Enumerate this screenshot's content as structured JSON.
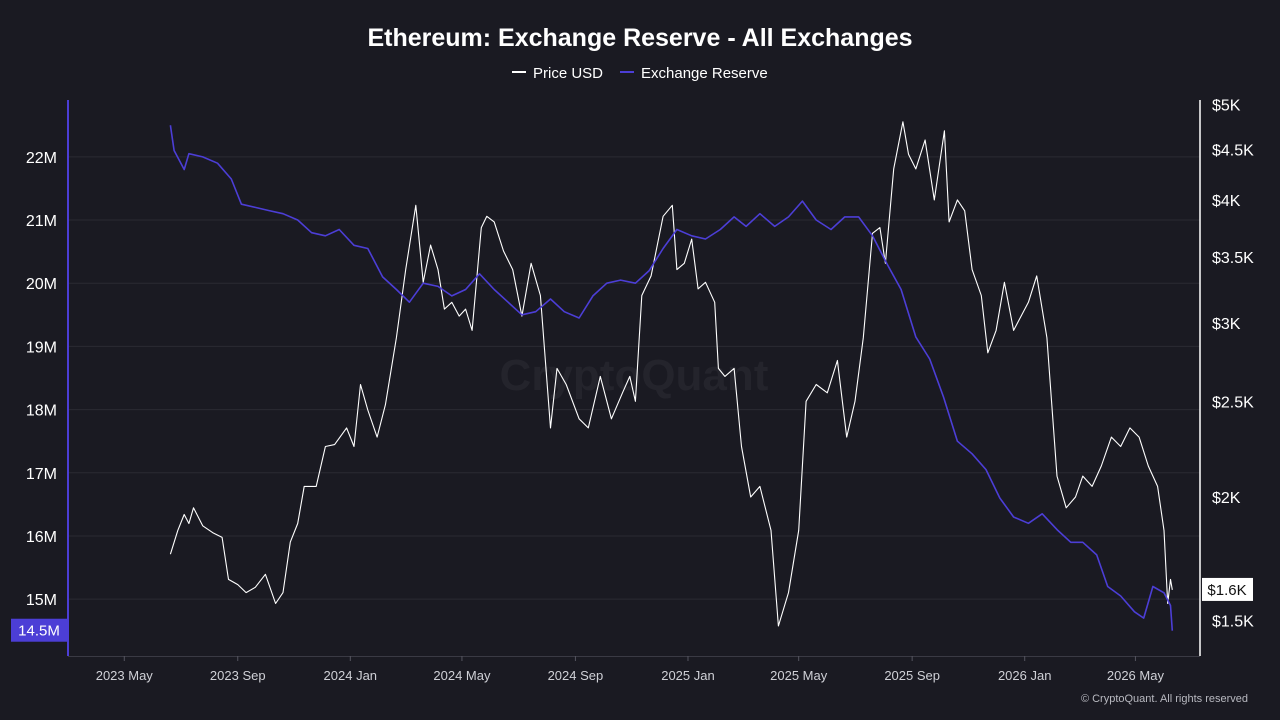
{
  "chart_data": {
    "type": "line",
    "title": "Ethereum: Exchange Reserve - All Exchanges",
    "legend": {
      "placement": "top-center",
      "entries": [
        "Price USD",
        "Exchange Reserve"
      ]
    },
    "grid": true,
    "colors": {
      "background": "#1a1a22",
      "price": "#ffffff",
      "reserve": "#4c3ed6",
      "grid": "#2a2a33",
      "badge_left": "#4c3ed6",
      "badge_right": "#ffffff"
    },
    "x_axis": {
      "ticks": [
        "2023 May",
        "2023 Sep",
        "2024 Jan",
        "2024 May",
        "2024 Sep",
        "2025 Jan",
        "2025 May",
        "2025 Sep",
        "2026 Jan",
        "2026 May"
      ],
      "range": [
        "2023-03-01",
        "2026-07-10"
      ]
    },
    "y_left": {
      "label": "Exchange Reserve",
      "range": [
        14.1,
        22.9
      ],
      "ticks": [
        "22M",
        "21M",
        "20M",
        "19M",
        "18M",
        "17M",
        "16M",
        "15M"
      ],
      "tick_values": [
        22,
        21,
        20,
        19,
        18,
        17,
        16,
        15
      ],
      "current": "14.5M"
    },
    "y_right": {
      "label": "Price USD",
      "scale": "log",
      "range": [
        1380,
        5050
      ],
      "ticks": [
        "$5K",
        "$4.5K",
        "$4K",
        "$3.5K",
        "$3K",
        "$2.5K",
        "$2K",
        "$1.5K"
      ],
      "tick_values": [
        5000,
        4500,
        4000,
        3500,
        3000,
        2500,
        2000,
        1500
      ],
      "current": "$1.6K"
    },
    "series": [
      {
        "name": "Price USD",
        "axis": "right",
        "points": [
          [
            "2023-06-20",
            1750
          ],
          [
            "2023-06-28",
            1850
          ],
          [
            "2023-07-05",
            1920
          ],
          [
            "2023-07-10",
            1880
          ],
          [
            "2023-07-15",
            1950
          ],
          [
            "2023-07-25",
            1870
          ],
          [
            "2023-08-05",
            1840
          ],
          [
            "2023-08-15",
            1820
          ],
          [
            "2023-08-22",
            1650
          ],
          [
            "2023-09-01",
            1630
          ],
          [
            "2023-09-10",
            1600
          ],
          [
            "2023-09-20",
            1620
          ],
          [
            "2023-10-01",
            1670
          ],
          [
            "2023-10-12",
            1560
          ],
          [
            "2023-10-20",
            1600
          ],
          [
            "2023-10-28",
            1800
          ],
          [
            "2023-11-05",
            1880
          ],
          [
            "2023-11-12",
            2050
          ],
          [
            "2023-11-25",
            2050
          ],
          [
            "2023-12-05",
            2250
          ],
          [
            "2023-12-15",
            2260
          ],
          [
            "2023-12-28",
            2350
          ],
          [
            "2024-01-05",
            2250
          ],
          [
            "2024-01-12",
            2600
          ],
          [
            "2024-01-20",
            2450
          ],
          [
            "2024-01-30",
            2300
          ],
          [
            "2024-02-08",
            2480
          ],
          [
            "2024-02-20",
            2900
          ],
          [
            "2024-03-01",
            3400
          ],
          [
            "2024-03-12",
            3950
          ],
          [
            "2024-03-20",
            3300
          ],
          [
            "2024-03-28",
            3600
          ],
          [
            "2024-04-05",
            3400
          ],
          [
            "2024-04-12",
            3100
          ],
          [
            "2024-04-20",
            3150
          ],
          [
            "2024-04-28",
            3050
          ],
          [
            "2024-05-05",
            3100
          ],
          [
            "2024-05-12",
            2950
          ],
          [
            "2024-05-22",
            3750
          ],
          [
            "2024-05-28",
            3850
          ],
          [
            "2024-06-05",
            3800
          ],
          [
            "2024-06-15",
            3550
          ],
          [
            "2024-06-25",
            3400
          ],
          [
            "2024-07-05",
            3050
          ],
          [
            "2024-07-15",
            3450
          ],
          [
            "2024-07-25",
            3200
          ],
          [
            "2024-08-05",
            2350
          ],
          [
            "2024-08-12",
            2700
          ],
          [
            "2024-08-22",
            2600
          ],
          [
            "2024-09-05",
            2400
          ],
          [
            "2024-09-15",
            2350
          ],
          [
            "2024-09-28",
            2650
          ],
          [
            "2024-10-10",
            2400
          ],
          [
            "2024-10-22",
            2550
          ],
          [
            "2024-10-30",
            2650
          ],
          [
            "2024-11-05",
            2500
          ],
          [
            "2024-11-12",
            3200
          ],
          [
            "2024-11-22",
            3350
          ],
          [
            "2024-12-05",
            3850
          ],
          [
            "2024-12-15",
            3950
          ],
          [
            "2024-12-20",
            3400
          ],
          [
            "2024-12-28",
            3450
          ],
          [
            "2025-01-05",
            3650
          ],
          [
            "2025-01-12",
            3250
          ],
          [
            "2025-01-20",
            3300
          ],
          [
            "2025-01-30",
            3150
          ],
          [
            "2025-02-03",
            2700
          ],
          [
            "2025-02-10",
            2650
          ],
          [
            "2025-02-20",
            2700
          ],
          [
            "2025-02-28",
            2250
          ],
          [
            "2025-03-10",
            2000
          ],
          [
            "2025-03-20",
            2050
          ],
          [
            "2025-04-01",
            1850
          ],
          [
            "2025-04-09",
            1480
          ],
          [
            "2025-04-20",
            1600
          ],
          [
            "2025-05-01",
            1850
          ],
          [
            "2025-05-09",
            2500
          ],
          [
            "2025-05-20",
            2600
          ],
          [
            "2025-06-01",
            2550
          ],
          [
            "2025-06-12",
            2750
          ],
          [
            "2025-06-22",
            2300
          ],
          [
            "2025-07-01",
            2500
          ],
          [
            "2025-07-10",
            2900
          ],
          [
            "2025-07-20",
            3700
          ],
          [
            "2025-07-28",
            3750
          ],
          [
            "2025-08-03",
            3450
          ],
          [
            "2025-08-12",
            4300
          ],
          [
            "2025-08-22",
            4800
          ],
          [
            "2025-08-28",
            4450
          ],
          [
            "2025-09-05",
            4300
          ],
          [
            "2025-09-15",
            4600
          ],
          [
            "2025-09-25",
            4000
          ],
          [
            "2025-10-06",
            4700
          ],
          [
            "2025-10-11",
            3800
          ],
          [
            "2025-10-20",
            4000
          ],
          [
            "2025-10-28",
            3900
          ],
          [
            "2025-11-05",
            3400
          ],
          [
            "2025-11-15",
            3200
          ],
          [
            "2025-11-22",
            2800
          ],
          [
            "2025-12-01",
            2950
          ],
          [
            "2025-12-10",
            3300
          ],
          [
            "2025-12-20",
            2950
          ],
          [
            "2026-01-05",
            3150
          ],
          [
            "2026-01-14",
            3350
          ],
          [
            "2026-01-25",
            2900
          ],
          [
            "2026-02-05",
            2100
          ],
          [
            "2026-02-15",
            1950
          ],
          [
            "2026-02-25",
            2000
          ],
          [
            "2026-03-05",
            2100
          ],
          [
            "2026-03-15",
            2050
          ],
          [
            "2026-03-25",
            2150
          ],
          [
            "2026-04-05",
            2300
          ],
          [
            "2026-04-15",
            2250
          ],
          [
            "2026-04-25",
            2350
          ],
          [
            "2026-05-05",
            2300
          ],
          [
            "2026-05-15",
            2150
          ],
          [
            "2026-05-25",
            2050
          ],
          [
            "2026-06-01",
            1850
          ],
          [
            "2026-06-05",
            1560
          ],
          [
            "2026-06-08",
            1650
          ],
          [
            "2026-06-10",
            1610
          ]
        ]
      },
      {
        "name": "Exchange Reserve",
        "axis": "left",
        "points": [
          [
            "2023-06-20",
            22.5
          ],
          [
            "2023-06-24",
            22.1
          ],
          [
            "2023-07-05",
            21.8
          ],
          [
            "2023-07-10",
            22.05
          ],
          [
            "2023-07-25",
            22.0
          ],
          [
            "2023-08-10",
            21.9
          ],
          [
            "2023-08-25",
            21.65
          ],
          [
            "2023-09-05",
            21.25
          ],
          [
            "2023-09-20",
            21.2
          ],
          [
            "2023-10-05",
            21.15
          ],
          [
            "2023-10-20",
            21.1
          ],
          [
            "2023-11-05",
            21.0
          ],
          [
            "2023-11-20",
            20.8
          ],
          [
            "2023-12-05",
            20.75
          ],
          [
            "2023-12-20",
            20.85
          ],
          [
            "2024-01-05",
            20.6
          ],
          [
            "2024-01-20",
            20.55
          ],
          [
            "2024-02-05",
            20.1
          ],
          [
            "2024-02-20",
            19.9
          ],
          [
            "2024-03-05",
            19.7
          ],
          [
            "2024-03-20",
            20.0
          ],
          [
            "2024-04-05",
            19.95
          ],
          [
            "2024-04-20",
            19.8
          ],
          [
            "2024-05-05",
            19.9
          ],
          [
            "2024-05-20",
            20.15
          ],
          [
            "2024-06-05",
            19.9
          ],
          [
            "2024-06-20",
            19.7
          ],
          [
            "2024-07-05",
            19.5
          ],
          [
            "2024-07-20",
            19.55
          ],
          [
            "2024-08-05",
            19.75
          ],
          [
            "2024-08-20",
            19.55
          ],
          [
            "2024-09-05",
            19.45
          ],
          [
            "2024-09-20",
            19.8
          ],
          [
            "2024-10-05",
            20.0
          ],
          [
            "2024-10-20",
            20.05
          ],
          [
            "2024-11-05",
            20.0
          ],
          [
            "2024-11-20",
            20.2
          ],
          [
            "2024-12-05",
            20.55
          ],
          [
            "2024-12-20",
            20.85
          ],
          [
            "2025-01-05",
            20.75
          ],
          [
            "2025-01-20",
            20.7
          ],
          [
            "2025-02-05",
            20.85
          ],
          [
            "2025-02-20",
            21.05
          ],
          [
            "2025-03-05",
            20.9
          ],
          [
            "2025-03-20",
            21.1
          ],
          [
            "2025-04-05",
            20.9
          ],
          [
            "2025-04-20",
            21.05
          ],
          [
            "2025-05-05",
            21.3
          ],
          [
            "2025-05-20",
            21.0
          ],
          [
            "2025-06-05",
            20.85
          ],
          [
            "2025-06-20",
            21.05
          ],
          [
            "2025-07-05",
            21.05
          ],
          [
            "2025-07-20",
            20.75
          ],
          [
            "2025-08-05",
            20.3
          ],
          [
            "2025-08-20",
            19.9
          ],
          [
            "2025-09-05",
            19.15
          ],
          [
            "2025-09-20",
            18.8
          ],
          [
            "2025-10-05",
            18.2
          ],
          [
            "2025-10-20",
            17.5
          ],
          [
            "2025-11-05",
            17.3
          ],
          [
            "2025-11-20",
            17.05
          ],
          [
            "2025-12-05",
            16.6
          ],
          [
            "2025-12-20",
            16.3
          ],
          [
            "2026-01-05",
            16.2
          ],
          [
            "2026-01-20",
            16.35
          ],
          [
            "2026-02-05",
            16.1
          ],
          [
            "2026-02-20",
            15.9
          ],
          [
            "2026-03-05",
            15.9
          ],
          [
            "2026-03-20",
            15.7
          ],
          [
            "2026-04-01",
            15.2
          ],
          [
            "2026-04-15",
            15.05
          ],
          [
            "2026-04-30",
            14.8
          ],
          [
            "2026-05-10",
            14.7
          ],
          [
            "2026-05-20",
            15.2
          ],
          [
            "2026-06-01",
            15.1
          ],
          [
            "2026-06-08",
            14.9
          ],
          [
            "2026-06-10",
            14.5
          ]
        ]
      }
    ]
  },
  "footer": {
    "credit": "© CryptoQuant. All rights reserved"
  },
  "watermark": "CryptoQuant"
}
